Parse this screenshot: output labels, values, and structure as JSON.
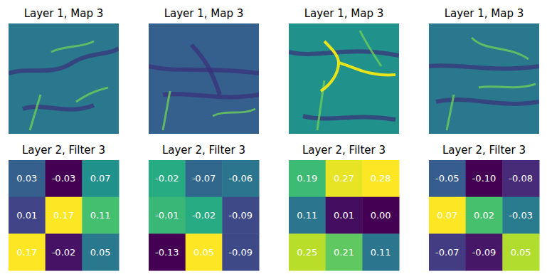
{
  "chart_data": [
    {
      "type": "image",
      "title": "Layer 1, Map 3",
      "tick_labels": false
    },
    {
      "type": "image",
      "title": "Layer 1, Map 3",
      "tick_labels": false
    },
    {
      "type": "image",
      "title": "Layer 1, Map 3",
      "tick_labels": false
    },
    {
      "type": "image",
      "title": "Layer 1, Map 3",
      "tick_labels": false
    },
    {
      "type": "heatmap",
      "title": "Layer 2, Filter 3",
      "tick_labels": false,
      "data_labels": true,
      "cells": [
        [
          0.03,
          -0.03,
          0.07
        ],
        [
          0.01,
          0.17,
          0.11
        ],
        [
          0.17,
          -0.02,
          0.05
        ]
      ],
      "cell_labels": [
        [
          "0.03",
          "-0.03",
          "0.07"
        ],
        [
          "0.01",
          "0.17",
          "0.11"
        ],
        [
          "0.17",
          "-0.02",
          "0.05"
        ]
      ]
    },
    {
      "type": "heatmap",
      "title": "Layer 2, Filter 3",
      "tick_labels": false,
      "data_labels": true,
      "cells": [
        [
          -0.02,
          -0.07,
          -0.06
        ],
        [
          -0.01,
          -0.02,
          -0.09
        ],
        [
          -0.13,
          0.05,
          -0.09
        ]
      ],
      "cell_labels": [
        [
          "-0.02",
          "-0.07",
          "-0.06"
        ],
        [
          "-0.01",
          "-0.02",
          "-0.09"
        ],
        [
          "-0.13",
          "0.05",
          "-0.09"
        ]
      ]
    },
    {
      "type": "heatmap",
      "title": "Layer 2, Filter 3",
      "tick_labels": false,
      "data_labels": true,
      "cells": [
        [
          0.19,
          0.27,
          0.28
        ],
        [
          0.11,
          0.01,
          0.0
        ],
        [
          0.25,
          0.21,
          0.11
        ]
      ],
      "cell_labels": [
        [
          "0.19",
          "0.27",
          "0.28"
        ],
        [
          "0.11",
          "0.01",
          "0.00"
        ],
        [
          "0.25",
          "0.21",
          "0.11"
        ]
      ]
    },
    {
      "type": "heatmap",
      "title": "Layer 2, Filter 3",
      "tick_labels": false,
      "data_labels": true,
      "cells": [
        [
          -0.05,
          -0.1,
          -0.08
        ],
        [
          0.07,
          0.02,
          -0.03
        ],
        [
          -0.07,
          -0.09,
          0.05
        ]
      ],
      "cell_labels": [
        [
          "-0.05",
          "-0.10",
          "-0.08"
        ],
        [
          "0.07",
          "0.02",
          "-0.03"
        ],
        [
          "-0.07",
          "-0.09",
          "0.05"
        ]
      ]
    }
  ]
}
